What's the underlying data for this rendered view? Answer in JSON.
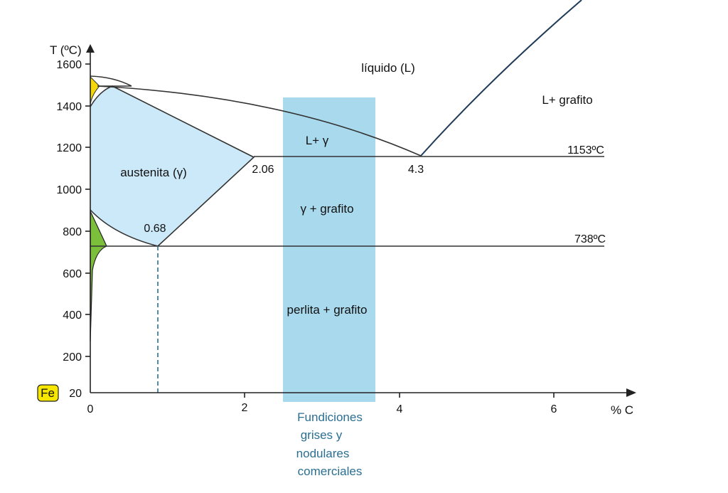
{
  "axes": {
    "y_label": "T (ºC)",
    "y_ticks": [
      "1600",
      "1400",
      "1200",
      "1000",
      "800",
      "600",
      "400",
      "200",
      "20"
    ],
    "x_ticks": [
      "0",
      "2",
      "4",
      "6"
    ],
    "x_label": "% C",
    "origin_element": "Fe"
  },
  "regions": {
    "liquid": "líquido (L)",
    "liquid_graphite": "L+ grafito",
    "liquid_austenite": "L+ γ",
    "austenite": "austenita (γ)",
    "austenite_graphite": "γ + grafito",
    "pearlite_graphite": "perlita + grafito"
  },
  "points": {
    "max_austenite": "2.06",
    "eutectic": "4.3",
    "eutectoid": "0.68"
  },
  "lines": {
    "eutectic_temp": "1153ºC",
    "eutectoid_temp": "738ºC"
  },
  "band_caption": [
    "Fundiciones",
    "grises y",
    "nodulares",
    "comerciales"
  ]
}
